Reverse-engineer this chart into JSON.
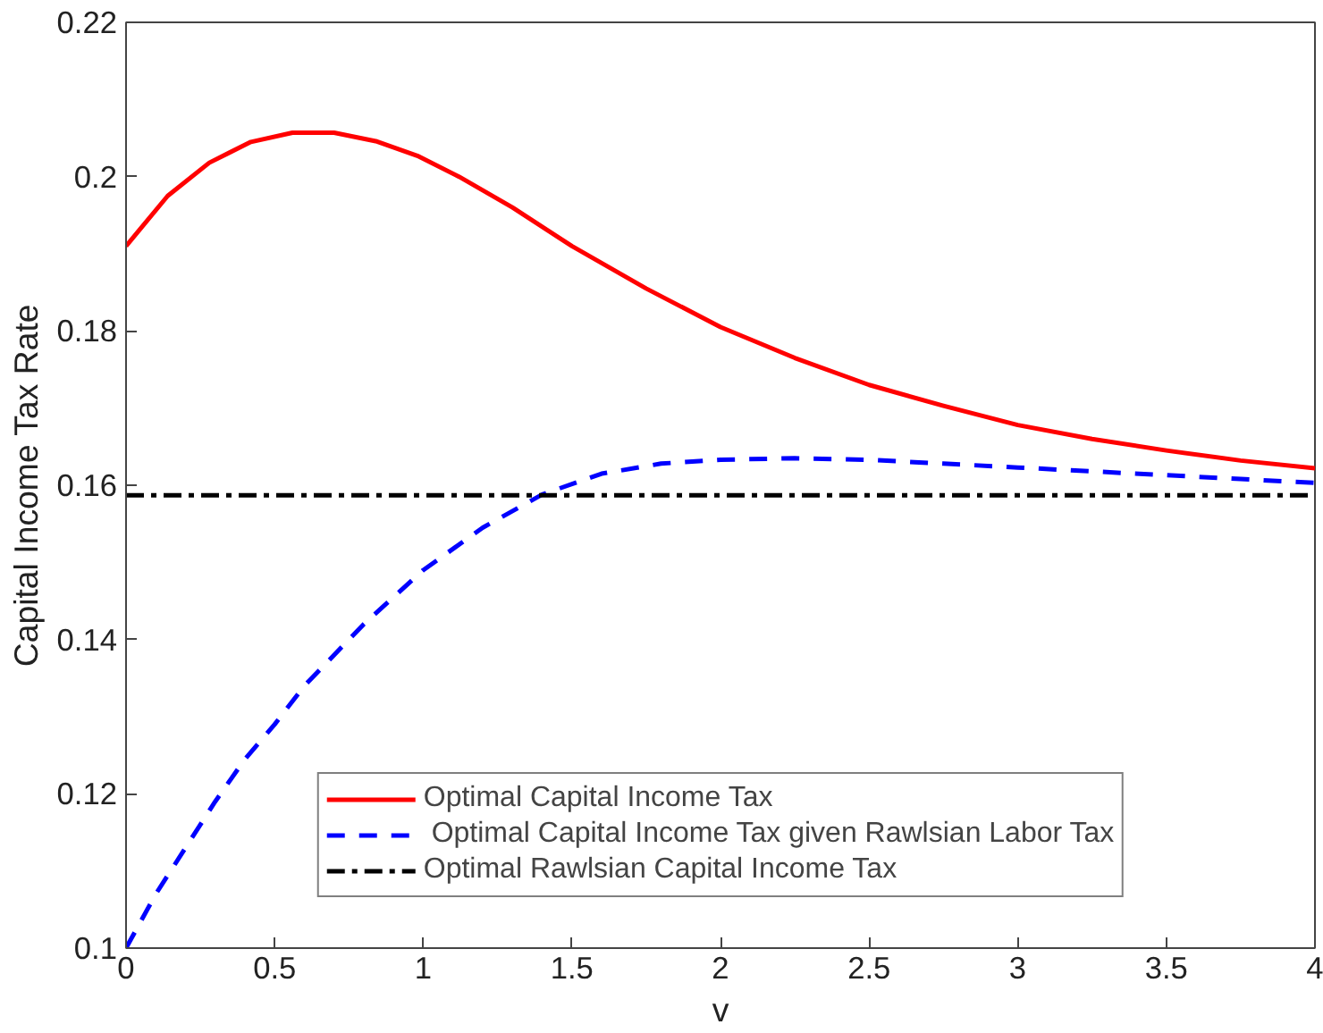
{
  "chart_data": {
    "type": "line",
    "xlabel": "v",
    "ylabel": "Capital Income Tax Rate",
    "xlim": [
      0,
      4
    ],
    "ylim": [
      0.1,
      0.22
    ],
    "xticks": [
      0,
      0.5,
      1,
      1.5,
      2,
      2.5,
      3,
      3.5,
      4
    ],
    "yticks": [
      0.1,
      0.12,
      0.14,
      0.16,
      0.18,
      0.2,
      0.22
    ],
    "grid": false,
    "legend": "bottom",
    "marker": "none",
    "series": [
      {
        "name": "Optimal Capital Income Tax",
        "color": "#ff0000",
        "line_style": "solid",
        "x": [
          0,
          0.14,
          0.28,
          0.42,
          0.56,
          0.7,
          0.84,
          0.98,
          1.12,
          1.3,
          1.5,
          1.75,
          2.0,
          2.25,
          2.5,
          2.75,
          3.0,
          3.25,
          3.5,
          3.75,
          4
        ],
        "values": [
          0.191,
          0.1975,
          0.2018,
          0.2045,
          0.2057,
          0.2057,
          0.2046,
          0.2027,
          0.2,
          0.196,
          0.191,
          0.1855,
          0.1805,
          0.1765,
          0.173,
          0.1703,
          0.1678,
          0.166,
          0.1645,
          0.1632,
          0.1622
        ]
      },
      {
        "name": " Optimal Capital Income Tax given Rawlsian Labor Tax",
        "color": "#0000ff",
        "line_style": "dashed",
        "x": [
          0,
          0.1,
          0.2,
          0.3,
          0.4,
          0.5,
          0.6,
          0.8,
          1.0,
          1.2,
          1.4,
          1.6,
          1.8,
          2.0,
          2.25,
          2.5,
          2.75,
          3.0,
          3.25,
          3.5,
          3.75,
          4
        ],
        "values": [
          0.1,
          0.107,
          0.113,
          0.119,
          0.1245,
          0.129,
          0.134,
          0.142,
          0.149,
          0.1545,
          0.1588,
          0.1615,
          0.1628,
          0.1633,
          0.1635,
          0.1633,
          0.1628,
          0.1623,
          0.1618,
          0.1613,
          0.1608,
          0.1603
        ]
      },
      {
        "name": "Optimal Rawlsian Capital Income Tax",
        "color": "#000000",
        "line_style": "dashdot",
        "x": [
          0,
          4
        ],
        "values": [
          0.1587,
          0.1587
        ]
      }
    ]
  }
}
